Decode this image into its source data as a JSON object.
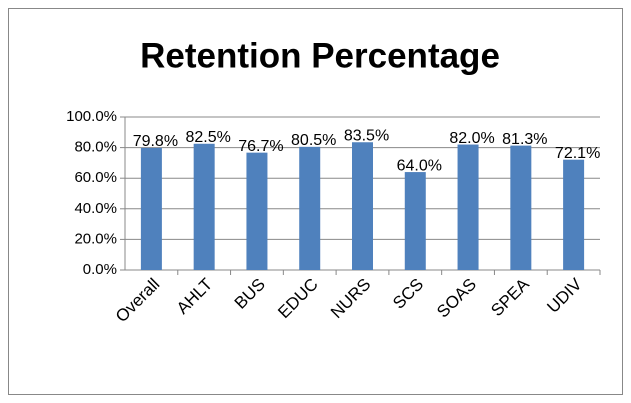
{
  "chart_data": {
    "type": "bar",
    "title": "Retention Percentage",
    "categories": [
      "Overall",
      "AHLT",
      "BUS",
      "EDUC",
      "NURS",
      "SCS",
      "SOAS",
      "SPEA",
      "UDIV"
    ],
    "values": [
      79.8,
      82.5,
      76.7,
      80.5,
      83.5,
      64.0,
      82.0,
      81.3,
      72.1
    ],
    "value_labels": [
      "79.8%",
      "82.5%",
      "76.7%",
      "80.5%",
      "83.5%",
      "64.0%",
      "82.0%",
      "81.3%",
      "72.1%"
    ],
    "color": "#4f81bd",
    "ylim": [
      0,
      100
    ],
    "yticks": [
      {
        "value": 0,
        "label": "0.0%"
      },
      {
        "value": 20,
        "label": "20.0%"
      },
      {
        "value": 40,
        "label": "40.0%"
      },
      {
        "value": 60,
        "label": "60.0%"
      },
      {
        "value": 80,
        "label": "80.0%"
      },
      {
        "value": 100,
        "label": "100.0%"
      }
    ],
    "grid": true
  }
}
